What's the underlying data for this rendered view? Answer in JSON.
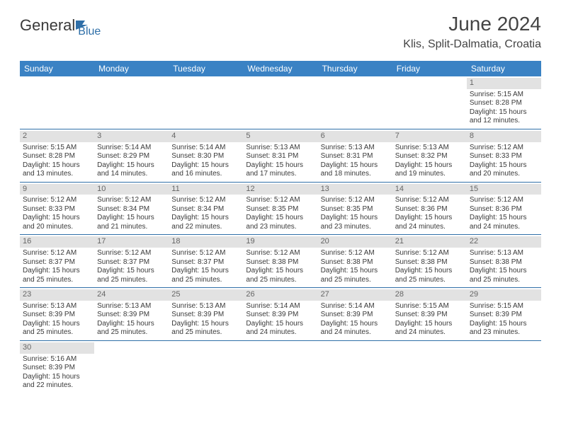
{
  "header": {
    "logo_general": "General",
    "logo_blue": "Blue",
    "month_title": "June 2024",
    "location": "Klis, Split-Dalmatia, Croatia"
  },
  "colors": {
    "header_bg": "#3a82c4",
    "header_text": "#ffffff",
    "daynum_bg": "#e2e2e2",
    "row_divider": "#2f6fa8",
    "body_text": "#3a3a3a"
  },
  "weekdays": [
    "Sunday",
    "Monday",
    "Tuesday",
    "Wednesday",
    "Thursday",
    "Friday",
    "Saturday"
  ],
  "weeks": [
    [
      null,
      null,
      null,
      null,
      null,
      null,
      {
        "day": "1",
        "sunrise": "Sunrise: 5:15 AM",
        "sunset": "Sunset: 8:28 PM",
        "daylight1": "Daylight: 15 hours",
        "daylight2": "and 12 minutes."
      }
    ],
    [
      {
        "day": "2",
        "sunrise": "Sunrise: 5:15 AM",
        "sunset": "Sunset: 8:28 PM",
        "daylight1": "Daylight: 15 hours",
        "daylight2": "and 13 minutes."
      },
      {
        "day": "3",
        "sunrise": "Sunrise: 5:14 AM",
        "sunset": "Sunset: 8:29 PM",
        "daylight1": "Daylight: 15 hours",
        "daylight2": "and 14 minutes."
      },
      {
        "day": "4",
        "sunrise": "Sunrise: 5:14 AM",
        "sunset": "Sunset: 8:30 PM",
        "daylight1": "Daylight: 15 hours",
        "daylight2": "and 16 minutes."
      },
      {
        "day": "5",
        "sunrise": "Sunrise: 5:13 AM",
        "sunset": "Sunset: 8:31 PM",
        "daylight1": "Daylight: 15 hours",
        "daylight2": "and 17 minutes."
      },
      {
        "day": "6",
        "sunrise": "Sunrise: 5:13 AM",
        "sunset": "Sunset: 8:31 PM",
        "daylight1": "Daylight: 15 hours",
        "daylight2": "and 18 minutes."
      },
      {
        "day": "7",
        "sunrise": "Sunrise: 5:13 AM",
        "sunset": "Sunset: 8:32 PM",
        "daylight1": "Daylight: 15 hours",
        "daylight2": "and 19 minutes."
      },
      {
        "day": "8",
        "sunrise": "Sunrise: 5:12 AM",
        "sunset": "Sunset: 8:33 PM",
        "daylight1": "Daylight: 15 hours",
        "daylight2": "and 20 minutes."
      }
    ],
    [
      {
        "day": "9",
        "sunrise": "Sunrise: 5:12 AM",
        "sunset": "Sunset: 8:33 PM",
        "daylight1": "Daylight: 15 hours",
        "daylight2": "and 20 minutes."
      },
      {
        "day": "10",
        "sunrise": "Sunrise: 5:12 AM",
        "sunset": "Sunset: 8:34 PM",
        "daylight1": "Daylight: 15 hours",
        "daylight2": "and 21 minutes."
      },
      {
        "day": "11",
        "sunrise": "Sunrise: 5:12 AM",
        "sunset": "Sunset: 8:34 PM",
        "daylight1": "Daylight: 15 hours",
        "daylight2": "and 22 minutes."
      },
      {
        "day": "12",
        "sunrise": "Sunrise: 5:12 AM",
        "sunset": "Sunset: 8:35 PM",
        "daylight1": "Daylight: 15 hours",
        "daylight2": "and 23 minutes."
      },
      {
        "day": "13",
        "sunrise": "Sunrise: 5:12 AM",
        "sunset": "Sunset: 8:35 PM",
        "daylight1": "Daylight: 15 hours",
        "daylight2": "and 23 minutes."
      },
      {
        "day": "14",
        "sunrise": "Sunrise: 5:12 AM",
        "sunset": "Sunset: 8:36 PM",
        "daylight1": "Daylight: 15 hours",
        "daylight2": "and 24 minutes."
      },
      {
        "day": "15",
        "sunrise": "Sunrise: 5:12 AM",
        "sunset": "Sunset: 8:36 PM",
        "daylight1": "Daylight: 15 hours",
        "daylight2": "and 24 minutes."
      }
    ],
    [
      {
        "day": "16",
        "sunrise": "Sunrise: 5:12 AM",
        "sunset": "Sunset: 8:37 PM",
        "daylight1": "Daylight: 15 hours",
        "daylight2": "and 25 minutes."
      },
      {
        "day": "17",
        "sunrise": "Sunrise: 5:12 AM",
        "sunset": "Sunset: 8:37 PM",
        "daylight1": "Daylight: 15 hours",
        "daylight2": "and 25 minutes."
      },
      {
        "day": "18",
        "sunrise": "Sunrise: 5:12 AM",
        "sunset": "Sunset: 8:37 PM",
        "daylight1": "Daylight: 15 hours",
        "daylight2": "and 25 minutes."
      },
      {
        "day": "19",
        "sunrise": "Sunrise: 5:12 AM",
        "sunset": "Sunset: 8:38 PM",
        "daylight1": "Daylight: 15 hours",
        "daylight2": "and 25 minutes."
      },
      {
        "day": "20",
        "sunrise": "Sunrise: 5:12 AM",
        "sunset": "Sunset: 8:38 PM",
        "daylight1": "Daylight: 15 hours",
        "daylight2": "and 25 minutes."
      },
      {
        "day": "21",
        "sunrise": "Sunrise: 5:12 AM",
        "sunset": "Sunset: 8:38 PM",
        "daylight1": "Daylight: 15 hours",
        "daylight2": "and 25 minutes."
      },
      {
        "day": "22",
        "sunrise": "Sunrise: 5:13 AM",
        "sunset": "Sunset: 8:38 PM",
        "daylight1": "Daylight: 15 hours",
        "daylight2": "and 25 minutes."
      }
    ],
    [
      {
        "day": "23",
        "sunrise": "Sunrise: 5:13 AM",
        "sunset": "Sunset: 8:39 PM",
        "daylight1": "Daylight: 15 hours",
        "daylight2": "and 25 minutes."
      },
      {
        "day": "24",
        "sunrise": "Sunrise: 5:13 AM",
        "sunset": "Sunset: 8:39 PM",
        "daylight1": "Daylight: 15 hours",
        "daylight2": "and 25 minutes."
      },
      {
        "day": "25",
        "sunrise": "Sunrise: 5:13 AM",
        "sunset": "Sunset: 8:39 PM",
        "daylight1": "Daylight: 15 hours",
        "daylight2": "and 25 minutes."
      },
      {
        "day": "26",
        "sunrise": "Sunrise: 5:14 AM",
        "sunset": "Sunset: 8:39 PM",
        "daylight1": "Daylight: 15 hours",
        "daylight2": "and 24 minutes."
      },
      {
        "day": "27",
        "sunrise": "Sunrise: 5:14 AM",
        "sunset": "Sunset: 8:39 PM",
        "daylight1": "Daylight: 15 hours",
        "daylight2": "and 24 minutes."
      },
      {
        "day": "28",
        "sunrise": "Sunrise: 5:15 AM",
        "sunset": "Sunset: 8:39 PM",
        "daylight1": "Daylight: 15 hours",
        "daylight2": "and 24 minutes."
      },
      {
        "day": "29",
        "sunrise": "Sunrise: 5:15 AM",
        "sunset": "Sunset: 8:39 PM",
        "daylight1": "Daylight: 15 hours",
        "daylight2": "and 23 minutes."
      }
    ],
    [
      {
        "day": "30",
        "sunrise": "Sunrise: 5:16 AM",
        "sunset": "Sunset: 8:39 PM",
        "daylight1": "Daylight: 15 hours",
        "daylight2": "and 22 minutes."
      },
      null,
      null,
      null,
      null,
      null,
      null
    ]
  ]
}
